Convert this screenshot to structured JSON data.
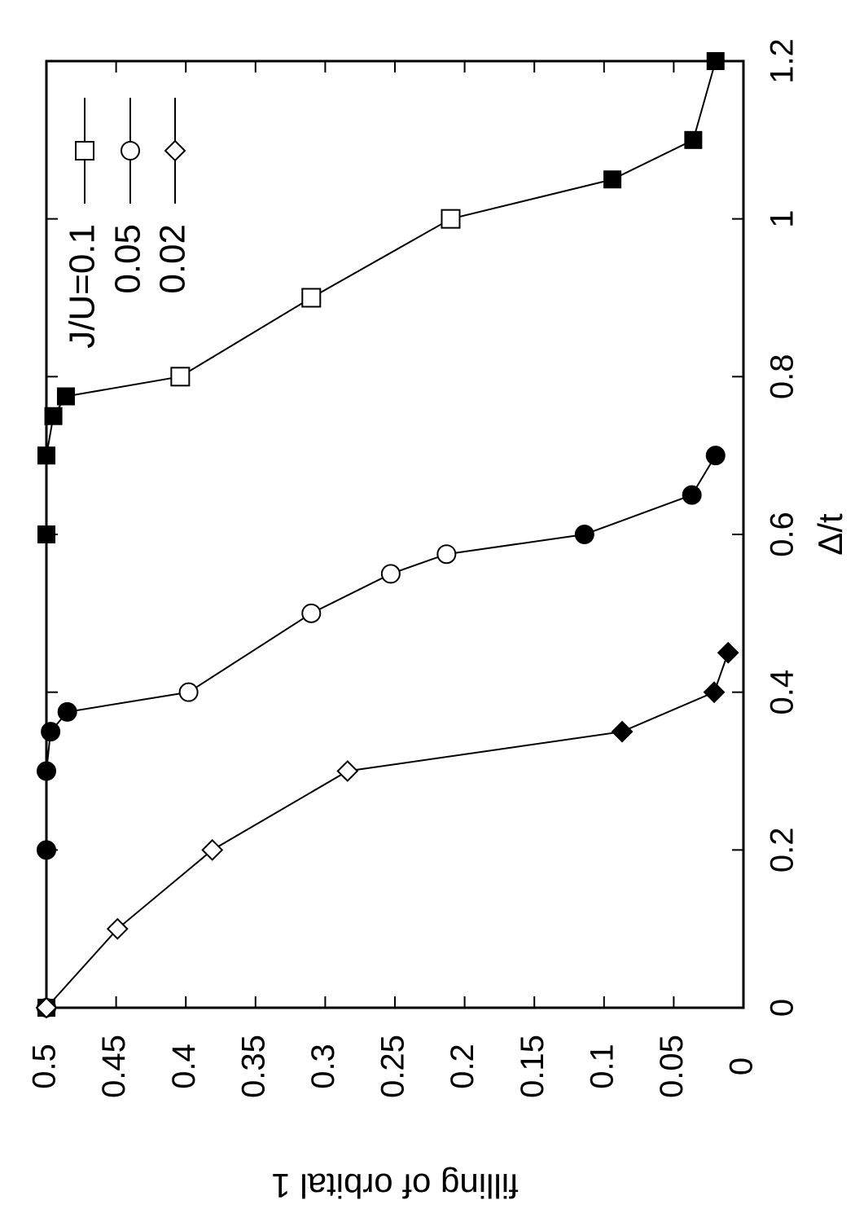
{
  "chart_data": {
    "type": "scatter",
    "xlabel": "Δ/t",
    "ylabel": "filling of orbital 1",
    "xlim": [
      0,
      1.2
    ],
    "ylim": [
      0,
      0.5
    ],
    "xticks": [
      "0",
      "0.2",
      "0.4",
      "0.6",
      "0.8",
      "1",
      "1.2"
    ],
    "yticks": [
      "0",
      "0.05",
      "0.1",
      "0.15",
      "0.2",
      "0.25",
      "0.3",
      "0.35",
      "0.4",
      "0.45",
      "0.5"
    ],
    "legend_position": "top-right",
    "series": [
      {
        "name": "J/U=0.1",
        "marker": "square",
        "points": [
          {
            "x": 0,
            "y": 0.5,
            "filled": true
          },
          {
            "x": 0.6,
            "y": 0.5,
            "filled": true
          },
          {
            "x": 0.7,
            "y": 0.5,
            "filled": true
          },
          {
            "x": 0.75,
            "y": 0.495,
            "filled": true
          },
          {
            "x": 0.775,
            "y": 0.486,
            "filled": true
          },
          {
            "x": 0.8,
            "y": 0.404,
            "filled": false
          },
          {
            "x": 0.9,
            "y": 0.31,
            "filled": false
          },
          {
            "x": 1.0,
            "y": 0.21,
            "filled": false
          },
          {
            "x": 1.05,
            "y": 0.094,
            "filled": true
          },
          {
            "x": 1.1,
            "y": 0.036,
            "filled": true
          },
          {
            "x": 1.2,
            "y": 0.02,
            "filled": true
          }
        ]
      },
      {
        "name": "0.05",
        "marker": "circle",
        "points": [
          {
            "x": 0,
            "y": 0.5,
            "filled": true
          },
          {
            "x": 0.2,
            "y": 0.5,
            "filled": true
          },
          {
            "x": 0.3,
            "y": 0.5,
            "filled": true
          },
          {
            "x": 0.35,
            "y": 0.497,
            "filled": true
          },
          {
            "x": 0.375,
            "y": 0.485,
            "filled": true
          },
          {
            "x": 0.4,
            "y": 0.398,
            "filled": false
          },
          {
            "x": 0.5,
            "y": 0.31,
            "filled": false
          },
          {
            "x": 0.55,
            "y": 0.253,
            "filled": false
          },
          {
            "x": 0.575,
            "y": 0.213,
            "filled": false
          },
          {
            "x": 0.6,
            "y": 0.114,
            "filled": true
          },
          {
            "x": 0.65,
            "y": 0.037,
            "filled": true
          },
          {
            "x": 0.7,
            "y": 0.02,
            "filled": true
          }
        ]
      },
      {
        "name": "0.02",
        "marker": "diamond",
        "points": [
          {
            "x": 0,
            "y": 0.5,
            "filled": false
          },
          {
            "x": 0.1,
            "y": 0.449,
            "filled": false
          },
          {
            "x": 0.2,
            "y": 0.381,
            "filled": false
          },
          {
            "x": 0.3,
            "y": 0.284,
            "filled": false
          },
          {
            "x": 0.35,
            "y": 0.087,
            "filled": true
          },
          {
            "x": 0.4,
            "y": 0.021,
            "filled": true
          },
          {
            "x": 0.45,
            "y": 0.011,
            "filled": true
          }
        ]
      }
    ]
  }
}
